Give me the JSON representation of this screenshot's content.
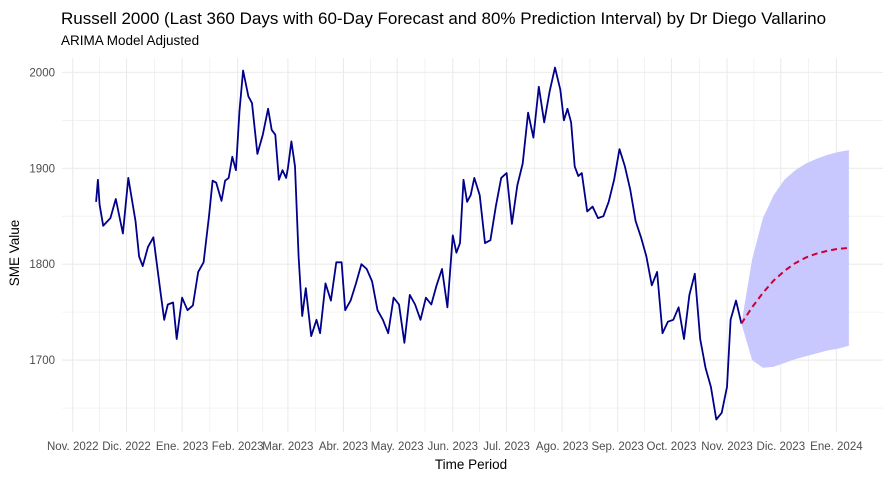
{
  "chart_data": {
    "type": "line",
    "title": "Russell 2000 (Last 360 Days with 60-Day Forecast and 80% Prediction Interval) by Dr Diego Vallarino",
    "subtitle": "ARIMA Model Adjusted",
    "xlabel": "Time Period",
    "ylabel": "SME Value",
    "x_ticks": [
      "Nov. 2022",
      "Dic. 2022",
      "Ene. 2023",
      "Feb. 2023",
      "Mar. 2023",
      "Abr. 2023",
      "May. 2023",
      "Jun. 2023",
      "Jul. 2023",
      "Ago. 2023",
      "Sep. 2023",
      "Oct. 2023",
      "Nov. 2023",
      "Dic. 2023",
      "Ene. 2024"
    ],
    "y_ticks": [
      1700,
      1800,
      1900,
      2000
    ],
    "ylim": [
      1625,
      2015
    ],
    "grid": true,
    "colors": {
      "observed": "#00008b",
      "forecast": "#cc0033",
      "interval": "#c8c8ff",
      "grid": "#ebebeb"
    },
    "observed": {
      "x": [
        "2022-11-14",
        "2022-11-15",
        "2022-11-16",
        "2022-11-18",
        "2022-11-22",
        "2022-11-25",
        "2022-11-29",
        "2022-12-02",
        "2022-12-06",
        "2022-12-08",
        "2022-12-10",
        "2022-12-13",
        "2022-12-16",
        "2022-12-20",
        "2022-12-22",
        "2022-12-24",
        "2022-12-27",
        "2022-12-29",
        "2023-01-01",
        "2023-01-04",
        "2023-01-07",
        "2023-01-10",
        "2023-01-13",
        "2023-01-16",
        "2023-01-18",
        "2023-01-20",
        "2023-01-23",
        "2023-01-25",
        "2023-01-27",
        "2023-01-29",
        "2023-01-31",
        "2023-02-02",
        "2023-02-04",
        "2023-02-07",
        "2023-02-09",
        "2023-02-12",
        "2023-02-15",
        "2023-02-18",
        "2023-02-20",
        "2023-02-22",
        "2023-02-24",
        "2023-02-26",
        "2023-02-28",
        "2023-03-01",
        "2023-03-03",
        "2023-03-05",
        "2023-03-07",
        "2023-03-09",
        "2023-03-11",
        "2023-03-14",
        "2023-03-17",
        "2023-03-19",
        "2023-03-22",
        "2023-03-25",
        "2023-03-28",
        "2023-03-31",
        "2023-04-02",
        "2023-04-05",
        "2023-04-08",
        "2023-04-11",
        "2023-04-14",
        "2023-04-17",
        "2023-04-20",
        "2023-04-23",
        "2023-04-26",
        "2023-04-29",
        "2023-05-02",
        "2023-05-05",
        "2023-05-08",
        "2023-05-11",
        "2023-05-14",
        "2023-05-17",
        "2023-05-20",
        "2023-05-23",
        "2023-05-26",
        "2023-05-29",
        "2023-06-01",
        "2023-06-03",
        "2023-06-05",
        "2023-06-07",
        "2023-06-09",
        "2023-06-11",
        "2023-06-13",
        "2023-06-16",
        "2023-06-19",
        "2023-06-22",
        "2023-06-25",
        "2023-06-28",
        "2023-07-01",
        "2023-07-04",
        "2023-07-07",
        "2023-07-10",
        "2023-07-13",
        "2023-07-16",
        "2023-07-19",
        "2023-07-22",
        "2023-07-25",
        "2023-07-28",
        "2023-07-31",
        "2023-08-02",
        "2023-08-04",
        "2023-08-06",
        "2023-08-08",
        "2023-08-10",
        "2023-08-12",
        "2023-08-15",
        "2023-08-18",
        "2023-08-21",
        "2023-08-24",
        "2023-08-27",
        "2023-08-30",
        "2023-09-02",
        "2023-09-05",
        "2023-09-08",
        "2023-09-11",
        "2023-09-14",
        "2023-09-17",
        "2023-09-20",
        "2023-09-23",
        "2023-09-26",
        "2023-09-29",
        "2023-10-02",
        "2023-10-05",
        "2023-10-08",
        "2023-10-11",
        "2023-10-14",
        "2023-10-17",
        "2023-10-20",
        "2023-10-23",
        "2023-10-26",
        "2023-10-29",
        "2023-11-01",
        "2023-11-03",
        "2023-11-06",
        "2023-11-09"
      ],
      "values": [
        1865,
        1888,
        1862,
        1840,
        1848,
        1868,
        1832,
        1890,
        1845,
        1808,
        1798,
        1818,
        1828,
        1770,
        1742,
        1758,
        1760,
        1722,
        1765,
        1752,
        1757,
        1792,
        1802,
        1850,
        1887,
        1885,
        1866,
        1887,
        1890,
        1912,
        1898,
        1960,
        2002,
        1975,
        1968,
        1915,
        1935,
        1962,
        1940,
        1935,
        1888,
        1898,
        1890,
        1900,
        1928,
        1902,
        1808,
        1746,
        1775,
        1725,
        1742,
        1728,
        1780,
        1762,
        1802,
        1802,
        1752,
        1762,
        1780,
        1800,
        1795,
        1782,
        1752,
        1742,
        1728,
        1765,
        1758,
        1718,
        1768,
        1758,
        1742,
        1765,
        1758,
        1778,
        1795,
        1755,
        1830,
        1812,
        1822,
        1888,
        1865,
        1872,
        1890,
        1872,
        1822,
        1825,
        1860,
        1890,
        1895,
        1842,
        1882,
        1905,
        1958,
        1932,
        1985,
        1948,
        1980,
        2005,
        1982,
        1950,
        1962,
        1948,
        1902,
        1892,
        1895,
        1855,
        1860,
        1848,
        1850,
        1865,
        1888,
        1920,
        1902,
        1878,
        1845,
        1828,
        1808,
        1778,
        1792,
        1728,
        1740,
        1742,
        1755,
        1722,
        1768,
        1790,
        1722,
        1692,
        1672,
        1638,
        1645,
        1672,
        1742,
        1762,
        1738
      ],
      "values_note": ""
    },
    "forecast": {
      "x": [
        "2023-11-09",
        "2023-11-15",
        "2023-11-21",
        "2023-11-27",
        "2023-12-03",
        "2023-12-09",
        "2023-12-15",
        "2023-12-21",
        "2023-12-27",
        "2024-01-02",
        "2024-01-08"
      ],
      "values": [
        1738,
        1755,
        1770,
        1783,
        1793,
        1801,
        1807,
        1811,
        1814,
        1816,
        1817
      ],
      "upper": [
        1738,
        1805,
        1848,
        1872,
        1888,
        1898,
        1905,
        1910,
        1914,
        1917,
        1919
      ],
      "lower": [
        1738,
        1700,
        1692,
        1693,
        1697,
        1701,
        1704,
        1707,
        1710,
        1712,
        1715
      ]
    }
  }
}
